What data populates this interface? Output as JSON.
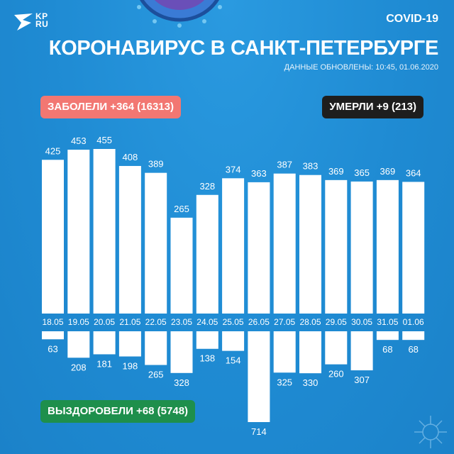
{
  "header": {
    "logo_text_line1": "KP",
    "logo_text_line2": "RU",
    "tag": "COVID-19",
    "title": "КОРОНАВИРУС В САНКТ-ПЕТЕРБУРГЕ",
    "updated": "ДАННЫЕ ОБНОВЛЕНЫ: 10:45, 01.06.2020"
  },
  "badges": {
    "cases": "ЗАБОЛЕЛИ +364 (16313)",
    "deaths": "УМЕРЛИ +9 (213)",
    "recovered": "ВЫЗДОРОВЕЛИ +68 (5748)"
  },
  "colors": {
    "background": "#1f8bd3",
    "bars": "#ffffff",
    "cases_badge": "#f27772",
    "deaths_badge": "#1e1e1e",
    "recovered_badge": "#1e8f4c"
  },
  "chart_data": {
    "type": "bar",
    "categories": [
      "18.05",
      "19.05",
      "20.05",
      "21.05",
      "22.05",
      "23.05",
      "24.05",
      "25.05",
      "26.05",
      "27.05",
      "28.05",
      "29.05",
      "30.05",
      "31.05",
      "01.06"
    ],
    "series": [
      {
        "values": [
          425,
          453,
          455,
          408,
          389,
          265,
          328,
          374,
          363,
          387,
          383,
          369,
          365,
          369,
          364
        ]
      },
      {
        "values": [
          63,
          208,
          181,
          198,
          265,
          328,
          138,
          154,
          714,
          325,
          330,
          260,
          307,
          68,
          68
        ]
      }
    ],
    "title": "",
    "xlabel": "",
    "ylabel": "",
    "grid": false,
    "legend": "none"
  }
}
